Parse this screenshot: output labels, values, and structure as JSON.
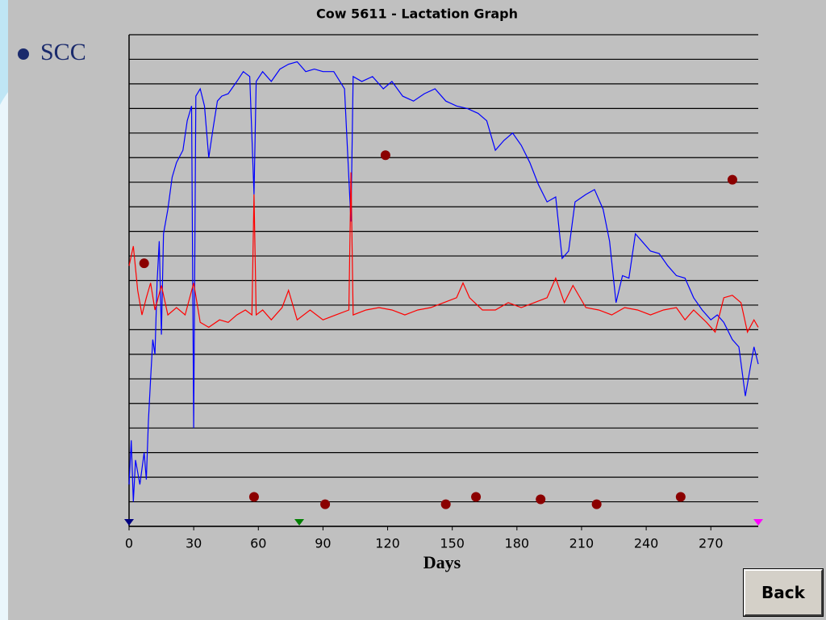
{
  "bullet": "SCC",
  "button": "Back",
  "chart_data": {
    "type": "line",
    "title": "Cow 5611 - Lactation Graph",
    "x_label": "Days",
    "xlim": [
      0,
      292
    ],
    "xticks": [
      0,
      30,
      60,
      90,
      120,
      150,
      180,
      210,
      240,
      270
    ],
    "ylim": [
      0,
      20
    ],
    "yticks": [
      0,
      1,
      2,
      3,
      4,
      5,
      6,
      7,
      8,
      9,
      10,
      11,
      12,
      13,
      14,
      15,
      16,
      17,
      18,
      19,
      20
    ],
    "grid": true,
    "series": [
      {
        "color": "#0000ff",
        "x": [
          0,
          1,
          2,
          3,
          5,
          7,
          8,
          9,
          10,
          11,
          12,
          13,
          14,
          15,
          16,
          18,
          20,
          22,
          25,
          27,
          29,
          30,
          31,
          33,
          35,
          37,
          39,
          41,
          43,
          46,
          50,
          53,
          56,
          58,
          59,
          62,
          66,
          70,
          74,
          78,
          82,
          86,
          90,
          95,
          100,
          103,
          104,
          108,
          113,
          118,
          122,
          127,
          132,
          137,
          142,
          147,
          152,
          157,
          162,
          166,
          170,
          174,
          178,
          182,
          186,
          190,
          194,
          198,
          201,
          204,
          207,
          212,
          216,
          220,
          223,
          226,
          229,
          232,
          235,
          238,
          242,
          246,
          250,
          254,
          258,
          262,
          266,
          270,
          273,
          276,
          280,
          283,
          286,
          288,
          290,
          292
        ],
        "values": [
          1.7,
          3.5,
          1.0,
          2.7,
          1.7,
          3.0,
          1.9,
          4.3,
          6.0,
          7.6,
          7.0,
          9.9,
          11.6,
          7.8,
          11.9,
          12.9,
          14.2,
          14.8,
          15.3,
          16.5,
          17.1,
          4.0,
          17.5,
          17.8,
          17.1,
          15.0,
          16.2,
          17.3,
          17.5,
          17.6,
          18.1,
          18.5,
          18.3,
          13.5,
          18.1,
          18.5,
          18.1,
          18.6,
          18.8,
          18.9,
          18.5,
          18.6,
          18.5,
          18.5,
          17.8,
          12.4,
          18.3,
          18.1,
          18.3,
          17.8,
          18.1,
          17.5,
          17.3,
          17.6,
          17.8,
          17.3,
          17.1,
          17.0,
          16.8,
          16.5,
          15.3,
          15.7,
          16.0,
          15.5,
          14.8,
          13.9,
          13.2,
          13.4,
          10.9,
          11.2,
          13.2,
          13.5,
          13.7,
          12.9,
          11.6,
          9.1,
          10.2,
          10.1,
          11.9,
          11.6,
          11.2,
          11.1,
          10.6,
          10.2,
          10.1,
          9.3,
          8.8,
          8.4,
          8.6,
          8.3,
          7.6,
          7.3,
          5.3,
          6.3,
          7.3,
          6.6
        ]
      },
      {
        "color": "#ff0000",
        "x": [
          0,
          2,
          4,
          6,
          8,
          10,
          12,
          15,
          18,
          22,
          26,
          30,
          33,
          37,
          42,
          46,
          50,
          54,
          57,
          58,
          59,
          62,
          66,
          71,
          74,
          78,
          84,
          90,
          96,
          102,
          103,
          104,
          110,
          116,
          122,
          128,
          134,
          140,
          146,
          152,
          155,
          158,
          164,
          170,
          176,
          182,
          188,
          194,
          198,
          202,
          206,
          212,
          218,
          224,
          230,
          236,
          242,
          248,
          254,
          258,
          262,
          268,
          272,
          276,
          280,
          284,
          287,
          290,
          292
        ],
        "values": [
          10.6,
          11.4,
          9.6,
          8.6,
          9.3,
          9.9,
          8.8,
          9.8,
          8.6,
          8.9,
          8.6,
          9.9,
          8.3,
          8.1,
          8.4,
          8.3,
          8.6,
          8.8,
          8.6,
          13.5,
          8.6,
          8.8,
          8.4,
          8.9,
          9.6,
          8.4,
          8.8,
          8.4,
          8.6,
          8.8,
          14.4,
          8.6,
          8.8,
          8.9,
          8.8,
          8.6,
          8.8,
          8.9,
          9.1,
          9.3,
          9.9,
          9.3,
          8.8,
          8.8,
          9.1,
          8.9,
          9.1,
          9.3,
          10.1,
          9.1,
          9.8,
          8.9,
          8.8,
          8.6,
          8.9,
          8.8,
          8.6,
          8.8,
          8.9,
          8.4,
          8.8,
          8.3,
          7.9,
          9.3,
          9.4,
          9.1,
          7.9,
          8.4,
          8.1
        ]
      }
    ],
    "points": {
      "color": "#8b0000",
      "x": [
        7,
        58,
        91,
        119,
        147,
        161,
        191,
        217,
        256,
        280
      ],
      "values": [
        10.7,
        1.2,
        0.9,
        15.1,
        0.9,
        1.2,
        1.1,
        0.9,
        1.2,
        14.1
      ]
    },
    "markers": [
      {
        "x": 0,
        "color": "#000080"
      },
      {
        "x": 79,
        "color": "#008000"
      },
      {
        "x": 292,
        "color": "#ff00ff"
      }
    ]
  }
}
